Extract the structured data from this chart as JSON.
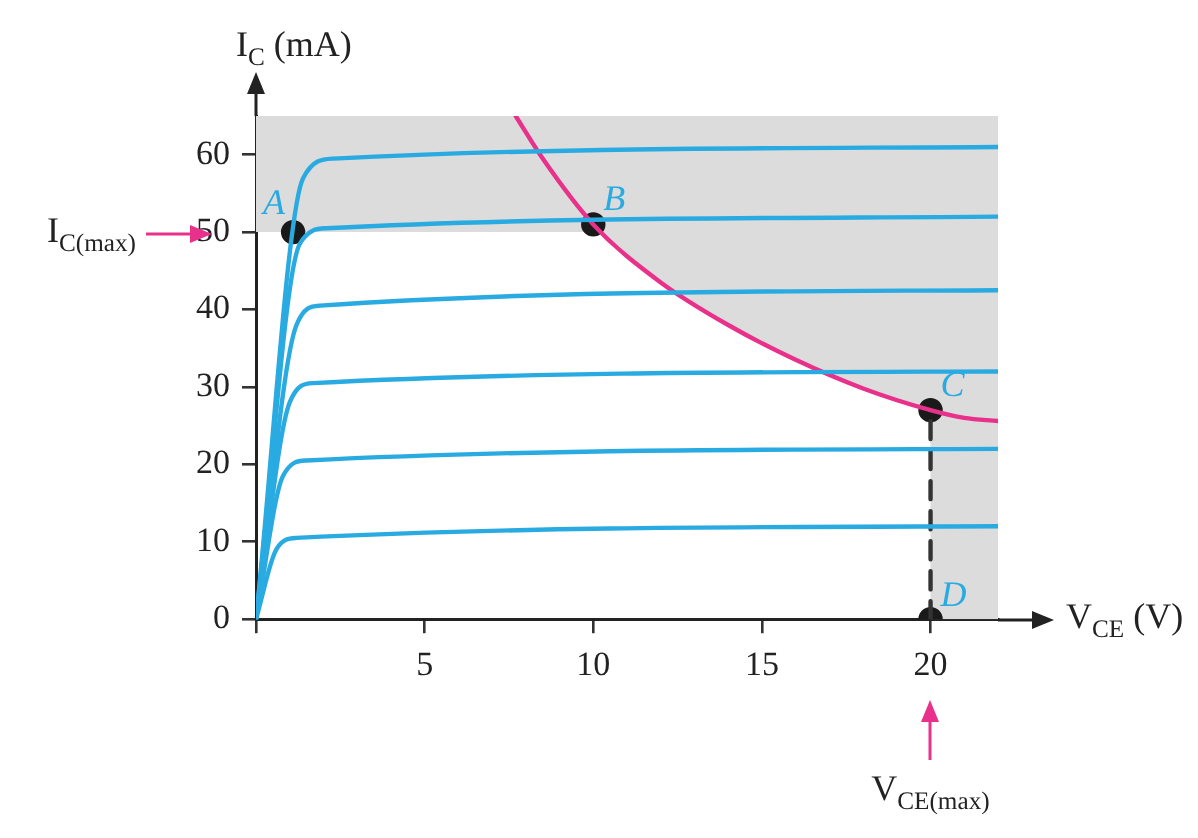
{
  "chart_data": {
    "type": "line",
    "xlabel": "V$_{CE}$ (V)",
    "ylabel": "I$_{C}$ (mA)",
    "xlim": [
      0,
      22
    ],
    "ylim": [
      0,
      65
    ],
    "xticks": [
      {
        "value": 0,
        "label": null
      },
      5,
      10,
      15,
      20
    ],
    "yticks": [
      0,
      10,
      20,
      30,
      40,
      50,
      60
    ],
    "grid": false,
    "legend": false,
    "marker": "none",
    "bands": [
      {
        "axis": "y",
        "from": 50,
        "to": 65,
        "color": "#dcdcdc"
      },
      {
        "axis": "x",
        "from": 20,
        "to": 22,
        "color": "#dcdcdc"
      }
    ],
    "series": [
      {
        "color": "#29abe2",
        "x": [
          0,
          0.6,
          1.2,
          22
        ],
        "values": [
          0,
          9,
          10.5,
          12
        ]
      },
      {
        "color": "#29abe2",
        "x": [
          0,
          0.8,
          1.5,
          22
        ],
        "values": [
          0,
          18.5,
          20.5,
          22
        ]
      },
      {
        "color": "#29abe2",
        "x": [
          0,
          1.0,
          1.7,
          22
        ],
        "values": [
          0,
          28,
          30.5,
          32
        ]
      },
      {
        "color": "#29abe2",
        "x": [
          0,
          1.2,
          1.9,
          22
        ],
        "values": [
          0,
          38,
          40.5,
          42.5
        ]
      },
      {
        "color": "#29abe2",
        "x": [
          0,
          1.3,
          2.1,
          22
        ],
        "values": [
          0,
          48.5,
          50.5,
          52
        ]
      },
      {
        "color": "#29abe2",
        "x": [
          0,
          1.4,
          2.3,
          22
        ],
        "values": [
          0,
          57,
          59.5,
          61
        ]
      },
      {
        "color": "#e8318a",
        "x": [
          7.7,
          8.5,
          10,
          12,
          14,
          16,
          18,
          20,
          21,
          22
        ],
        "values": [
          65,
          59.5,
          51,
          43.5,
          38,
          33.5,
          29.8,
          27,
          26,
          25.6
        ],
        "lower": [
          65,
          59.5,
          51,
          43.5,
          38,
          33.5,
          29.8,
          27,
          26,
          25.6
        ],
        "upper": [
          65,
          65,
          65,
          65,
          65,
          65,
          65,
          65,
          65,
          65
        ]
      },
      {
        "type": "line",
        "color": "#333333",
        "line_style": "dashed",
        "x": [
          20,
          20
        ],
        "values": [
          0,
          27
        ]
      },
      {
        "type": "scatter",
        "color": "#1a1a1a",
        "marker": "circle",
        "x": [
          1.1,
          10,
          20,
          20
        ],
        "values": [
          50,
          51,
          27,
          0
        ]
      }
    ],
    "annotations": [
      {
        "text": "A",
        "x": 1.1,
        "y": 50
      },
      {
        "text": "B",
        "x": 10,
        "y": 51
      },
      {
        "text": "C",
        "x": 20,
        "y": 27
      },
      {
        "text": "D",
        "x": 20,
        "y": 0
      },
      "I$_{C(max)}$",
      "V$_{CE(max)}$"
    ]
  }
}
